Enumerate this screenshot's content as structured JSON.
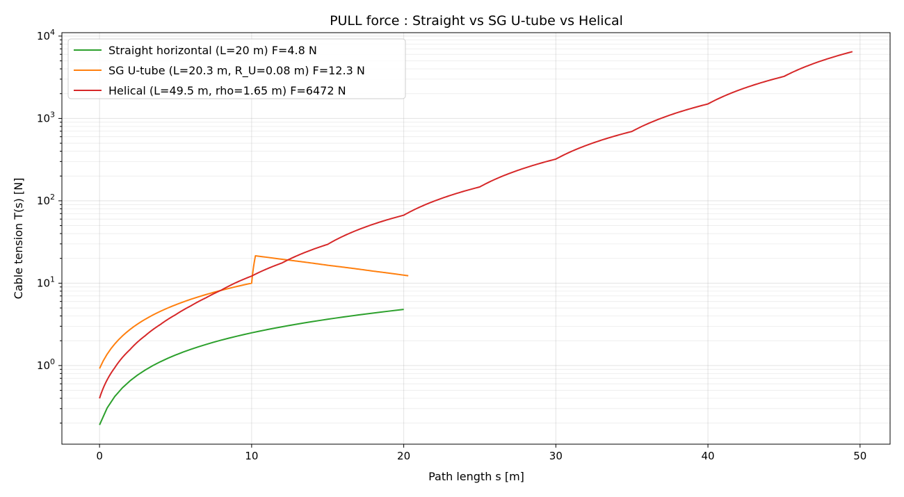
{
  "chart_data": {
    "type": "line",
    "title": "PULL force : Straight  vs  SG U-tube  vs  Helical",
    "xlabel": "Path length s [m]",
    "ylabel": "Cable tension T(s) [N]",
    "xlim": [
      -2.475,
      51.975
    ],
    "ylim": [
      0.111,
      11000
    ],
    "yscale": "log",
    "grid": "major and minor, light gray",
    "legend_position": "top-left",
    "x_ticks": [
      "0",
      "10",
      "20",
      "30",
      "40",
      "50"
    ],
    "y_ticks": [
      {
        "exp": "0",
        "value": 1
      },
      {
        "exp": "1",
        "value": 10
      },
      {
        "exp": "2",
        "value": 100
      },
      {
        "exp": "3",
        "value": 1000
      },
      {
        "exp": "4",
        "value": 10000
      }
    ],
    "y_tick_base": "10",
    "series": [
      {
        "name": "Straight horizontal (L=20 m)  F=4.8 N",
        "color": "#2ca02c",
        "points": [
          [
            0,
            0.19
          ],
          [
            20,
            4.8
          ]
        ]
      },
      {
        "name": "SG U-tube (L=20.3 m, R_U=0.08 m)  F=12.3 N",
        "color": "#ff7f0e",
        "points": [
          [
            0,
            0.92
          ],
          [
            10,
            10.0
          ],
          [
            10.25,
            21.5
          ],
          [
            12,
            19.5
          ],
          [
            15,
            16.5
          ],
          [
            18,
            14.0
          ],
          [
            20.3,
            12.3
          ]
        ]
      },
      {
        "name": "Helical (L=49.5 m, rho=1.65 m)  F=6472 N",
        "color": "#d62728",
        "points": [
          [
            0,
            0.4
          ],
          [
            1,
            0.94
          ],
          [
            2,
            1.56
          ],
          [
            3,
            2.3
          ],
          [
            4,
            3.15
          ],
          [
            5,
            4.14
          ],
          [
            6,
            5.3
          ],
          [
            7,
            6.65
          ],
          [
            8,
            8.22
          ],
          [
            10,
            12.2
          ],
          [
            12,
            17.6
          ],
          [
            15,
            29.6
          ],
          [
            20,
            66.9
          ],
          [
            25,
            147.5
          ],
          [
            30,
            321
          ],
          [
            35,
            695
          ],
          [
            40,
            1500
          ],
          [
            45,
            3237
          ],
          [
            49.5,
            6472
          ]
        ]
      }
    ]
  }
}
